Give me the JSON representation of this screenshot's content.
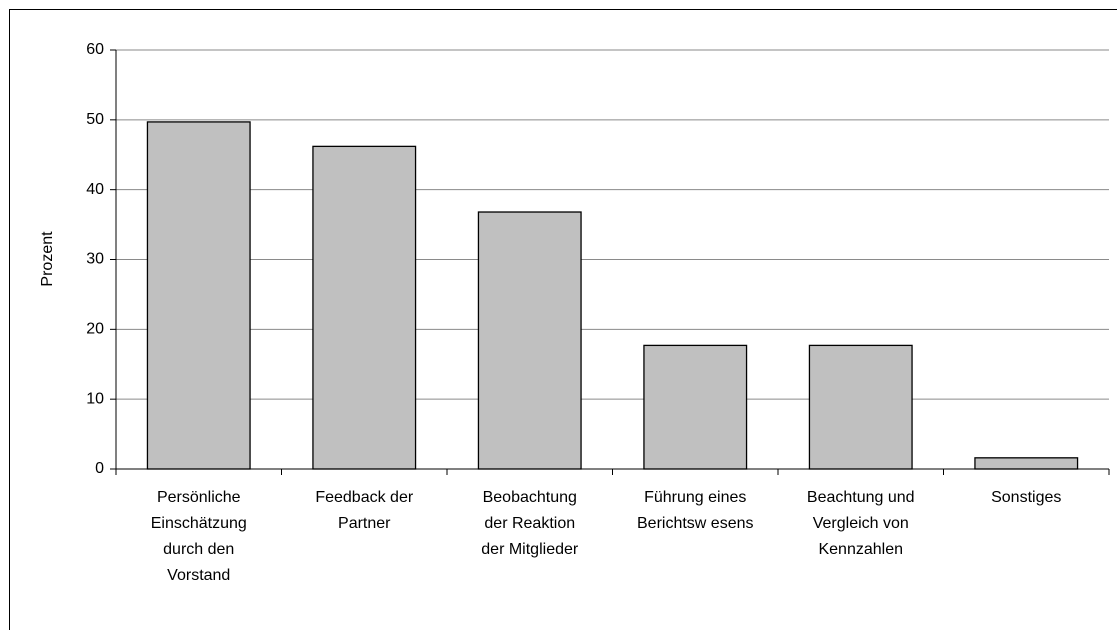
{
  "chart_data": {
    "type": "bar",
    "y_label": "Prozent",
    "categories": [
      [
        "Persönliche",
        "Einschätzung",
        "durch den",
        "Vorstand"
      ],
      [
        "Feedback der",
        "Partner"
      ],
      [
        "Beobachtung",
        "der Reaktion",
        "der Mitglieder"
      ],
      [
        "Führung eines",
        "Berichtsw esens"
      ],
      [
        "Beachtung und",
        "Vergleich von",
        "Kennzahlen"
      ],
      [
        "Sonstiges"
      ]
    ],
    "values": [
      49.7,
      46.2,
      36.8,
      17.7,
      17.7,
      1.6
    ],
    "color": "#c0c0c0",
    "ylim": [
      0,
      60
    ],
    "yticks": [
      0,
      10,
      20,
      30,
      40,
      50,
      60
    ],
    "grid": true
  }
}
